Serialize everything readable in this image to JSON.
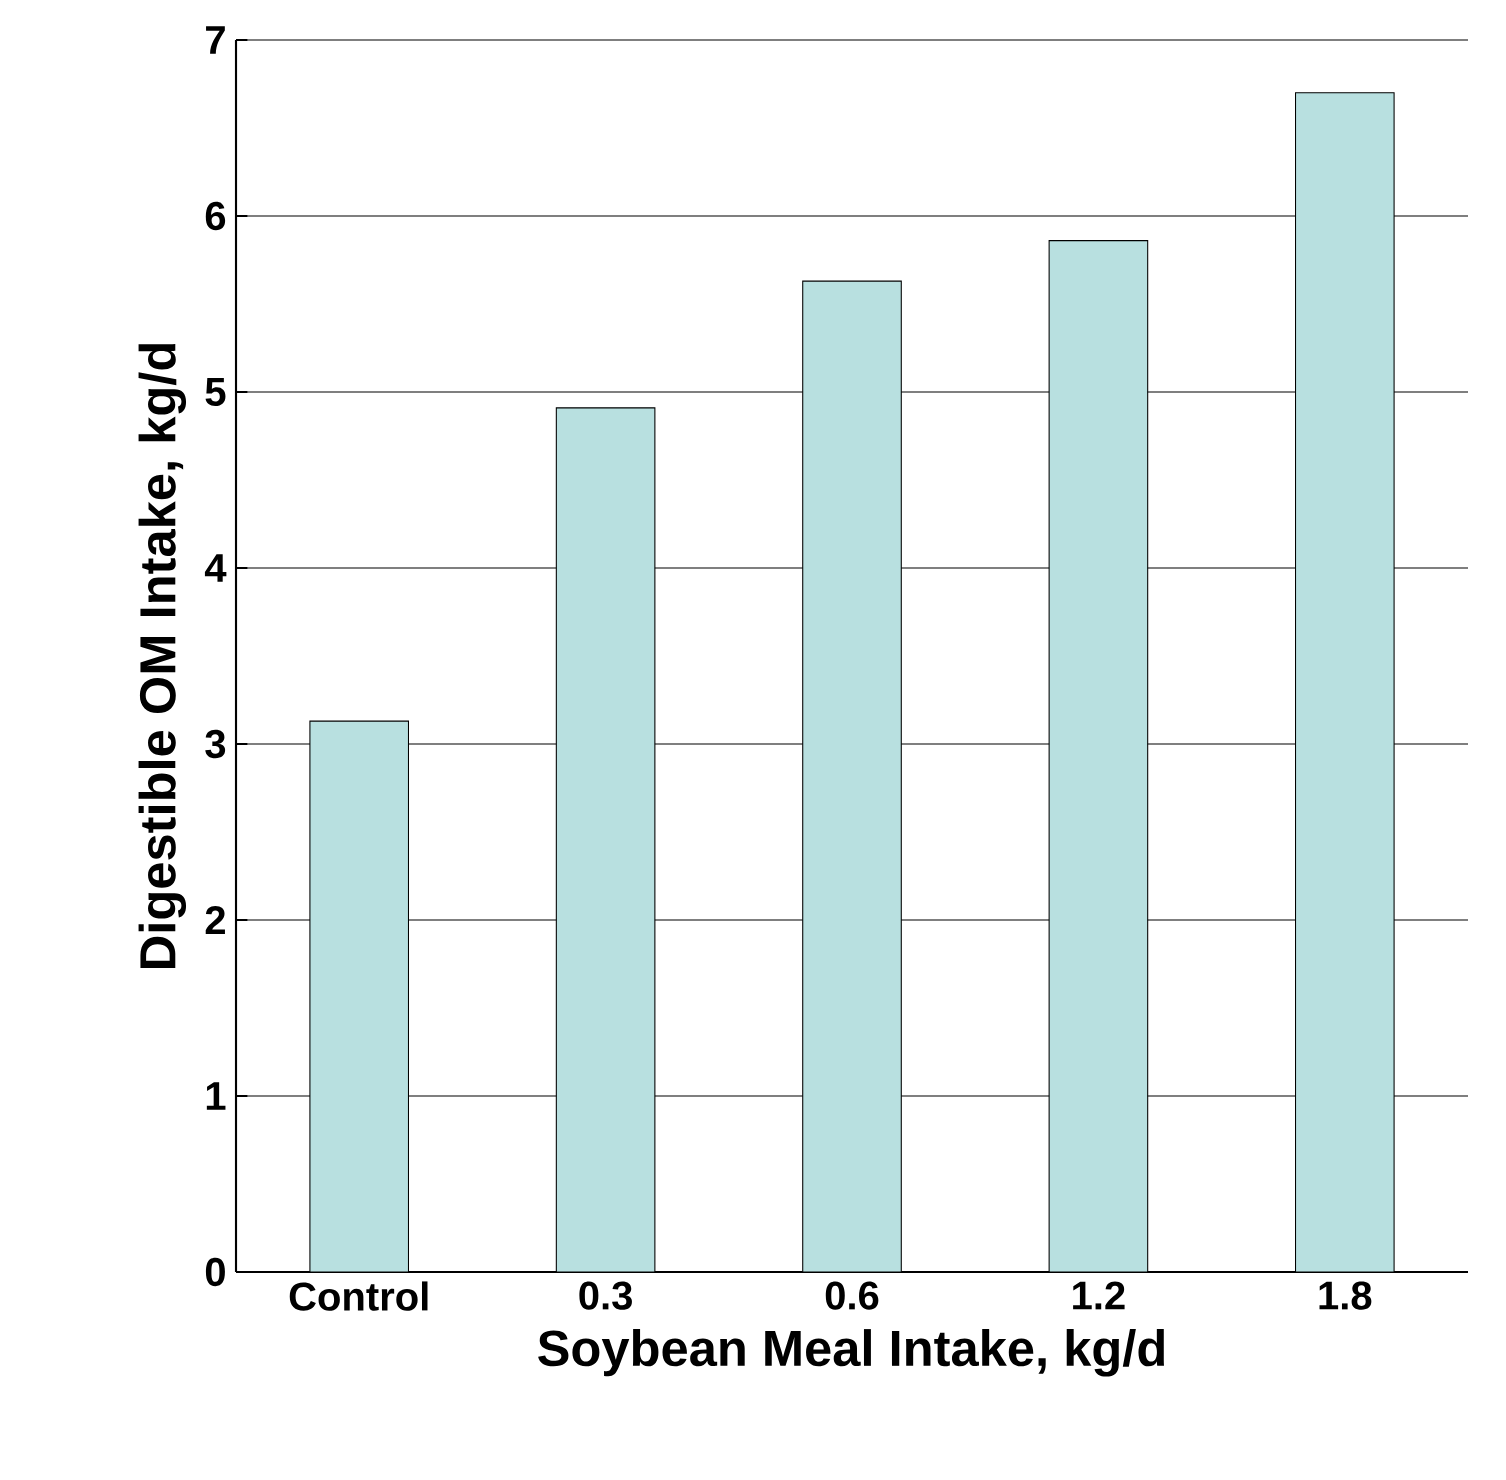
{
  "chart_data": {
    "type": "bar",
    "xlabel": "Soybean Meal Intake, kg/d",
    "ylabel": "Digestible OM Intake, kg/d",
    "categories": [
      "Control",
      "0.3",
      "0.6",
      "1.2",
      "1.8"
    ],
    "values": [
      3.13,
      4.91,
      5.63,
      5.86,
      6.7
    ],
    "color": "#b8e0e0",
    "ylim": [
      0,
      7
    ],
    "yticks": [
      0,
      1,
      2,
      3,
      4,
      5,
      6,
      7
    ],
    "grid": "y"
  }
}
